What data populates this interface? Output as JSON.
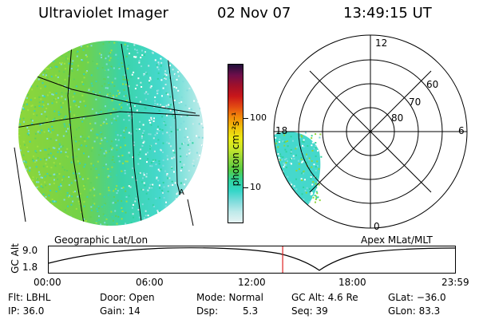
{
  "header": {
    "instrument": "Ultraviolet Imager",
    "date": "02 Nov 07",
    "time": "13:49:15 UT"
  },
  "colorbar": {
    "label": "photon cm⁻²s⁻¹",
    "ticks": [
      "100",
      "10"
    ],
    "colors": [
      "#e6f3f3",
      "#bfeaea",
      "#7fdcdc",
      "#35d6c8",
      "#2ed39e",
      "#55cc44",
      "#8fd63a",
      "#c8e62a",
      "#ecea14",
      "#f0c20a",
      "#f28a0a",
      "#e24a12",
      "#c8161a",
      "#a0102a",
      "#6e0e4a",
      "#20103a"
    ]
  },
  "left_panel": {
    "label": "Geographic Lat/Lon"
  },
  "right_panel": {
    "label": "Apex MLat/MLT",
    "mlt_labels": [
      "12",
      "18",
      "6",
      "0"
    ],
    "lat_labels": [
      "60",
      "70",
      "80"
    ]
  },
  "timeline": {
    "ylabel": "GC Alt",
    "yticks": [
      "9.0",
      "1.8"
    ],
    "xticks": [
      "00:00",
      "06:00",
      "12:00",
      "18:00",
      "23:59"
    ],
    "current_time_fraction": 0.5758,
    "colors": {
      "marker": "#dd2222"
    }
  },
  "status": {
    "flt": "Flt: LBHL",
    "door": "Door: Open",
    "mode": "Mode: Normal",
    "gcalt": "GC Alt: 4.6 Re",
    "glat": "GLat: −36.0",
    "ip": "IP: 36.0",
    "gain": "Gain: 14",
    "dsp_label": "Dsp:",
    "dsp_value": "5.3",
    "seq": "Seq: 39",
    "glon": "GLon:  83.3"
  }
}
